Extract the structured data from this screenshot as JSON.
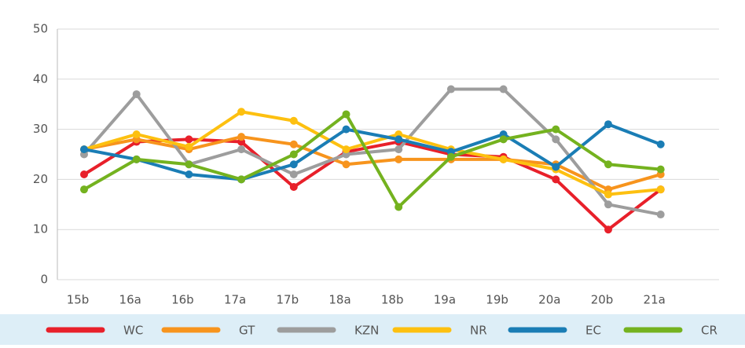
{
  "chart_data": {
    "type": "line",
    "categories": [
      "15b",
      "16a",
      "16b",
      "17a",
      "17b",
      "18a",
      "18b",
      "19a",
      "19b",
      "20a",
      "20b",
      "21a"
    ],
    "series": [
      {
        "name": "WC",
        "color": "#e8202a",
        "values": [
          21,
          27.5,
          28,
          27.5,
          18.5,
          25.5,
          27.5,
          25,
          24.5,
          20,
          10,
          18
        ]
      },
      {
        "name": "GT",
        "color": "#f7941d",
        "values": [
          26,
          28,
          26,
          28.5,
          27,
          23,
          24,
          24,
          24,
          23,
          18,
          21
        ]
      },
      {
        "name": "KZN",
        "color": "#9d9d9d",
        "values": [
          25,
          37,
          23,
          26,
          21,
          25,
          26,
          38,
          38,
          28,
          15,
          13
        ]
      },
      {
        "name": "NR",
        "color": "#fdc010",
        "values": [
          26,
          29,
          26.5,
          33.5,
          31.7,
          26,
          29,
          26,
          24,
          22,
          17,
          18
        ]
      },
      {
        "name": "EC",
        "color": "#1a7db5",
        "values": [
          26,
          24,
          21,
          20,
          23,
          30,
          28,
          25.5,
          29,
          22.5,
          31,
          27
        ]
      },
      {
        "name": "CR",
        "color": "#74b21f",
        "values": [
          18,
          24,
          23,
          20,
          25,
          33,
          14.5,
          24.5,
          28,
          30,
          23,
          22
        ]
      }
    ],
    "ylim": [
      0,
      50
    ],
    "yticks": [
      0,
      10,
      20,
      30,
      40,
      50
    ],
    "grid": true,
    "legend": "bottom"
  }
}
